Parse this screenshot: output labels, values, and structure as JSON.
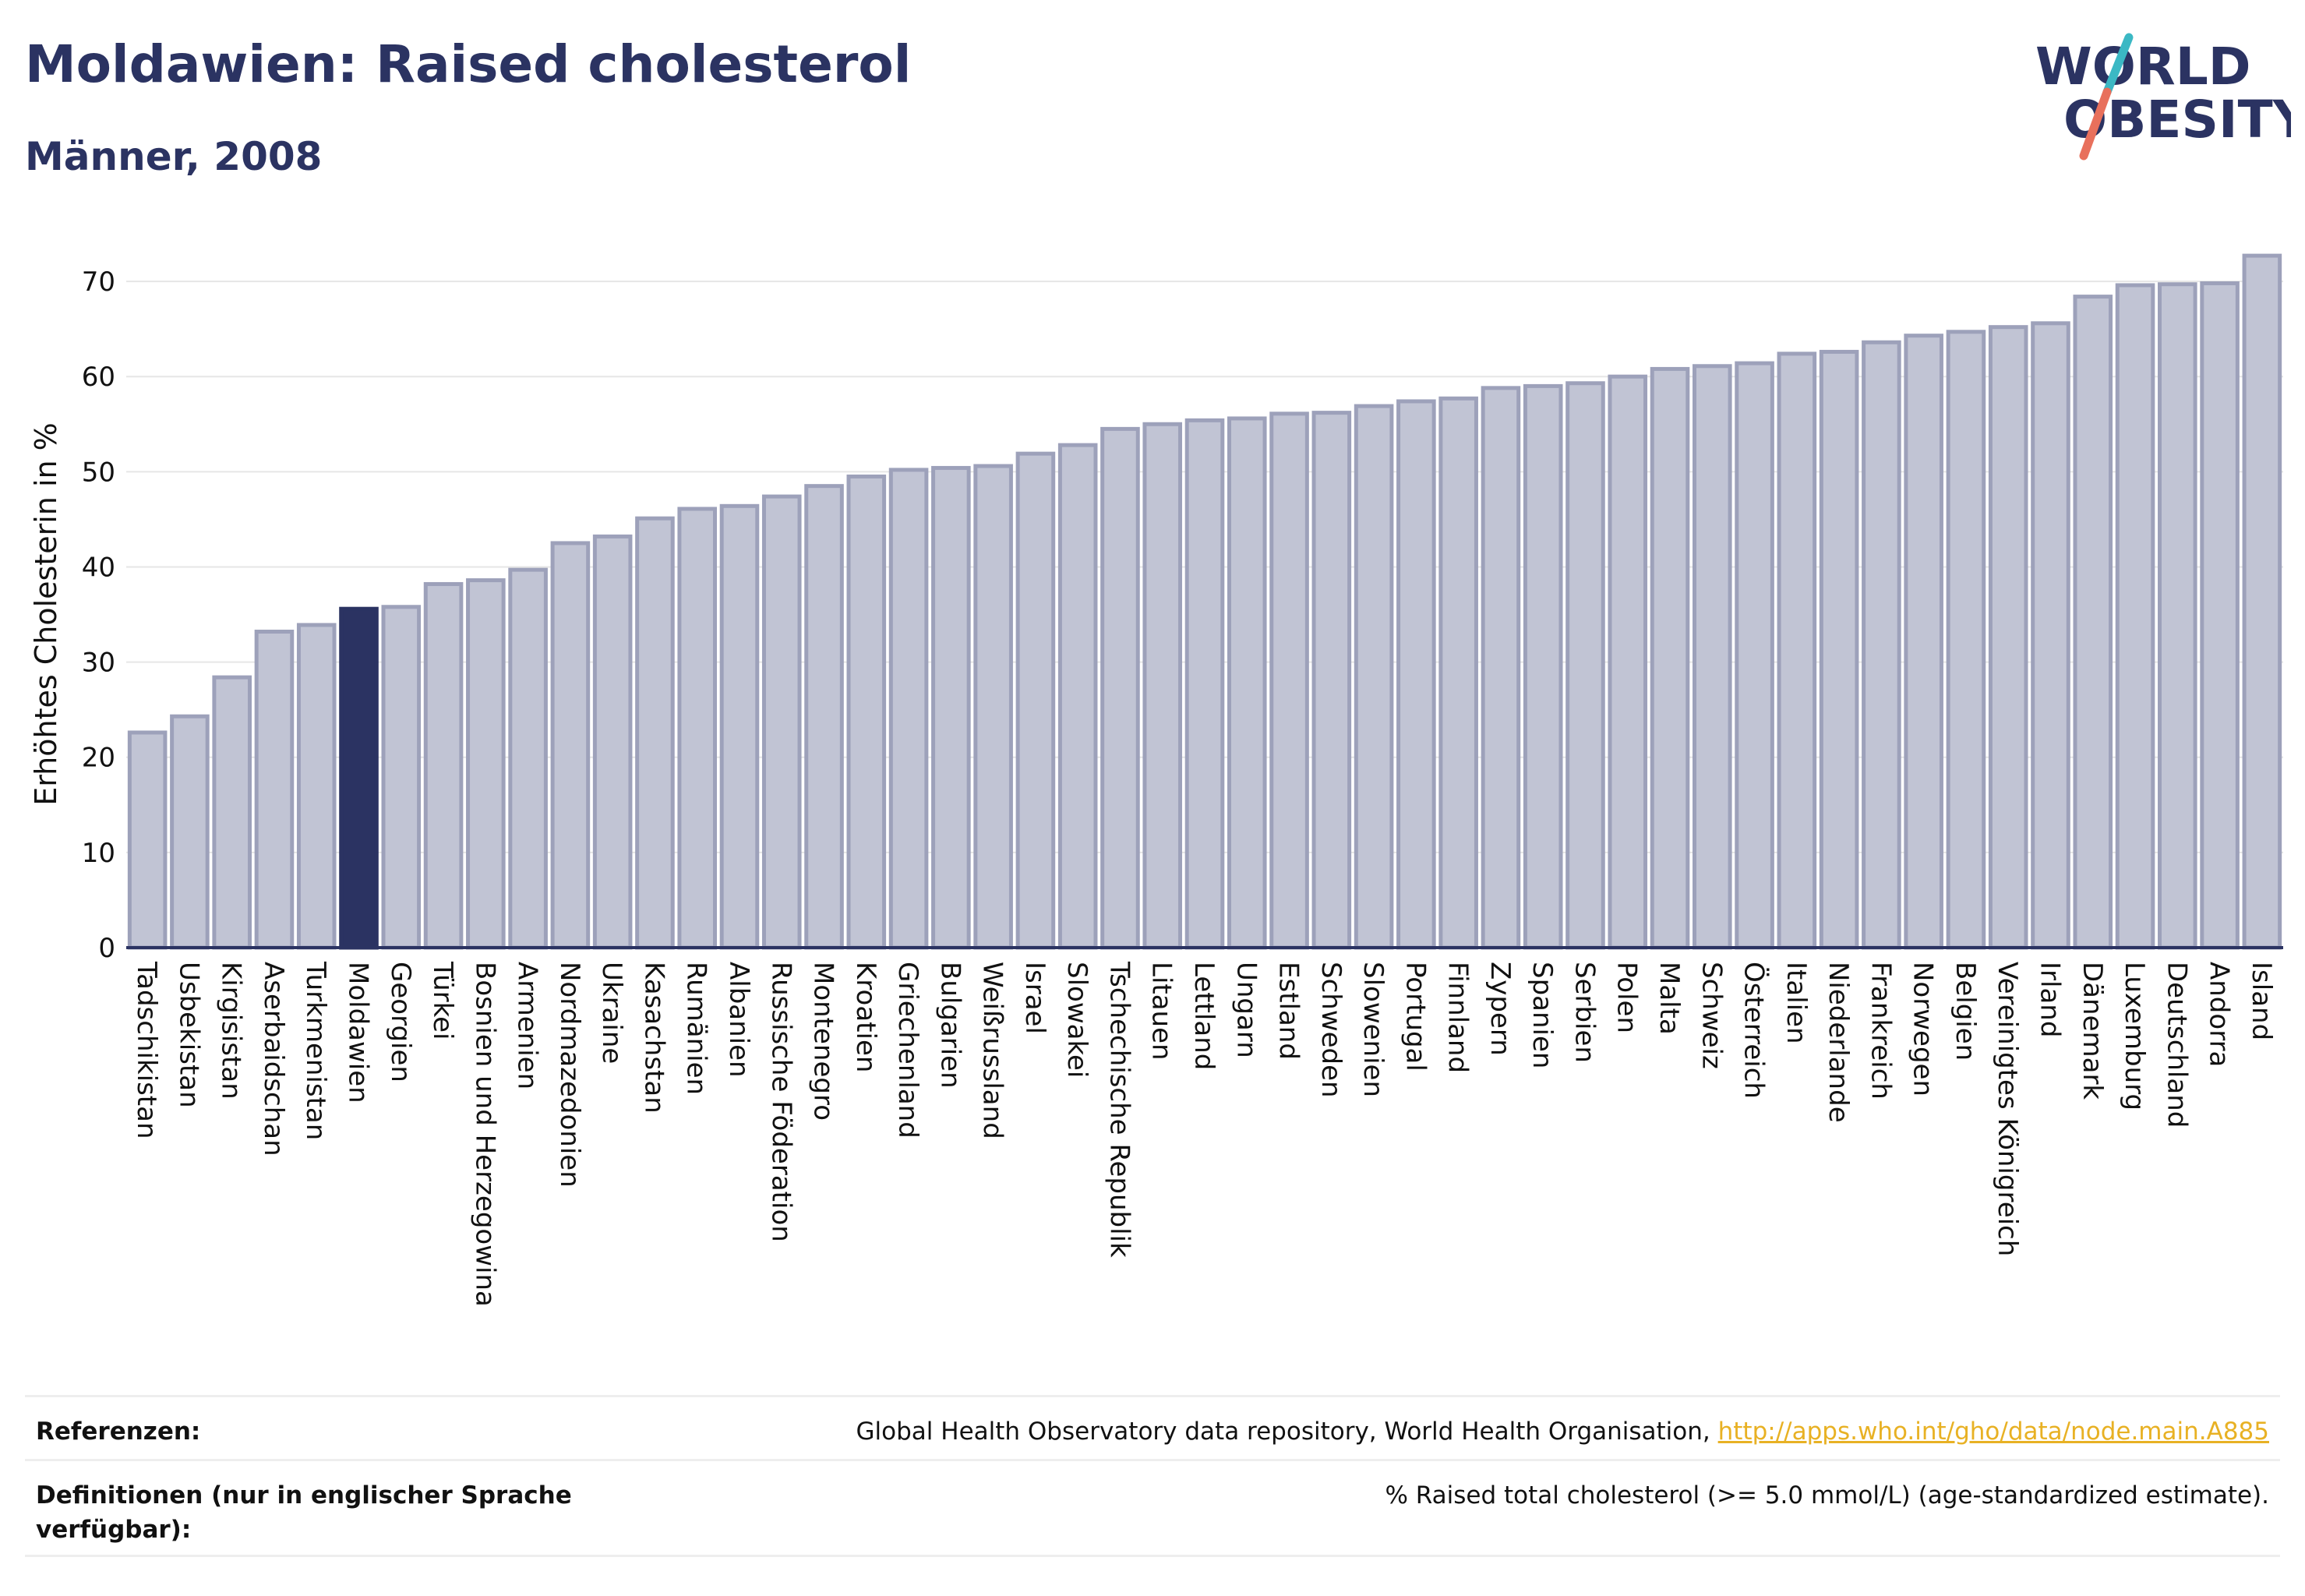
{
  "header": {
    "title": "Moldawien: Raised cholesterol",
    "subtitle": "Männer, 2008"
  },
  "logo": {
    "line1": "WORLD",
    "line2": "OBESITY",
    "text_color": "#2b3362",
    "slash_colors": [
      "#3bb8c4",
      "#e8705c"
    ]
  },
  "colors": {
    "bar": "#c1c4d4",
    "bar_stroke": "#9da1ba",
    "highlight": "#2b3362",
    "axis": "#2b3362",
    "grid": "#e6e6e6"
  },
  "chart_data": {
    "type": "bar",
    "ylabel": "Erhöhtes Cholesterin in %",
    "ylim": [
      0,
      75
    ],
    "yticks": [
      0,
      10,
      20,
      30,
      40,
      50,
      60,
      70
    ],
    "highlight": "Moldawien",
    "grid": true,
    "categories": [
      "Tadschikistan",
      "Usbekistan",
      "Kirgisistan",
      "Aserbaidschan",
      "Turkmenistan",
      "Moldawien",
      "Georgien",
      "Türkei",
      "Bosnien und Herzegowina",
      "Armenien",
      "Nordmazedonien",
      "Ukraine",
      "Kasachstan",
      "Rumänien",
      "Albanien",
      "Russische Föderation",
      "Montenegro",
      "Kroatien",
      "Griechenland",
      "Bulgarien",
      "Weißrussland",
      "Israel",
      "Slowakei",
      "Tschechische Republik",
      "Litauen",
      "Lettland",
      "Ungarn",
      "Estland",
      "Schweden",
      "Slowenien",
      "Portugal",
      "Finnland",
      "Zypern",
      "Spanien",
      "Serbien",
      "Polen",
      "Malta",
      "Schweiz",
      "Österreich",
      "Italien",
      "Niederlande",
      "Frankreich",
      "Norwegen",
      "Belgien",
      "Vereinigtes Königreich",
      "Irland",
      "Dänemark",
      "Luxemburg",
      "Deutschland",
      "Andorra",
      "Island"
    ],
    "values": [
      22.6,
      24.3,
      28.4,
      33.2,
      33.9,
      35.6,
      35.8,
      38.2,
      38.6,
      39.7,
      42.5,
      43.2,
      45.1,
      46.1,
      46.4,
      47.4,
      48.5,
      49.5,
      50.2,
      50.4,
      50.6,
      51.9,
      52.8,
      54.5,
      55.0,
      55.4,
      55.6,
      56.1,
      56.2,
      56.9,
      57.4,
      57.7,
      58.8,
      59.0,
      59.3,
      60.0,
      60.8,
      61.1,
      61.4,
      62.4,
      62.6,
      63.6,
      64.3,
      64.7,
      65.2,
      65.6,
      68.4,
      69.6,
      69.7,
      69.8,
      72.7
    ]
  },
  "footer": {
    "references_label": "Referenzen:",
    "references_text": "Global Health Observatory data repository, World Health Organisation, ",
    "references_link": "http://apps.who.int/gho/data/node.main.A885",
    "definitions_label": "Definitionen (nur in englischer Sprache verfügbar):",
    "definitions_text": "% Raised total cholesterol (>= 5.0 mmol/L) (age-standardized estimate)."
  }
}
